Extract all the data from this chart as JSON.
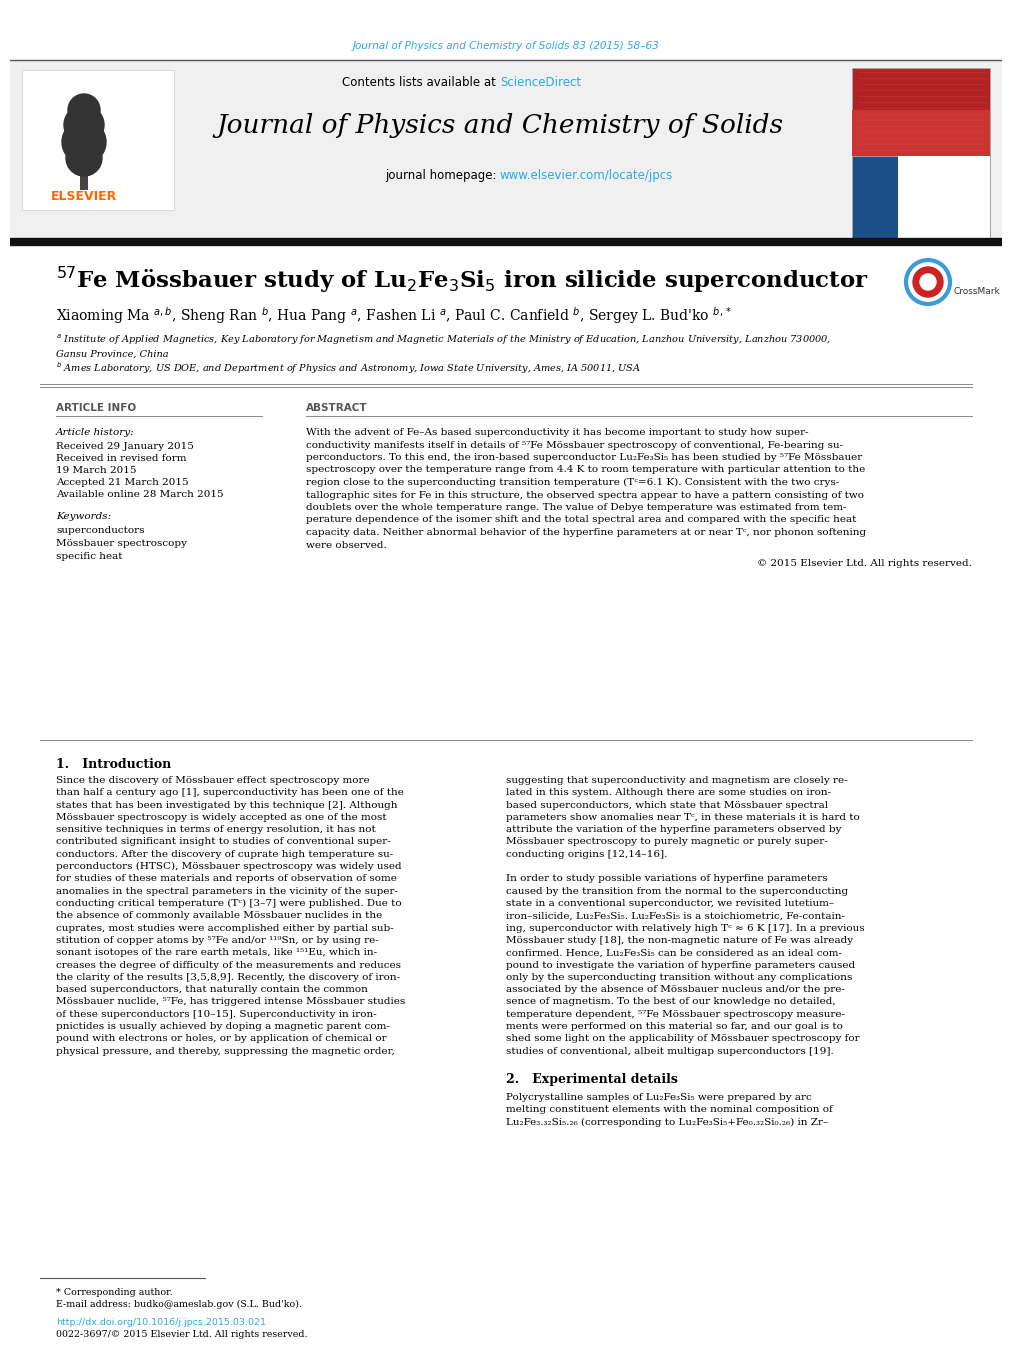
{
  "journal_citation": "Journal of Physics and Chemistry of Solids 83 (2015) 58–63",
  "journal_name": "Journal of Physics and Chemistry of Solids",
  "contents_text": "Contents lists available at ",
  "science_direct": "ScienceDirect",
  "homepage_text": "journal homepage: ",
  "homepage_url": "www.elsevier.com/locate/jpcs",
  "elsevier_color": "#FF6600",
  "link_color": "#29ABE2",
  "title": "$^{57}$Fe Mössbauer study of Lu$_2$Fe$_3$Si$_5$ iron silicide superconductor",
  "authors": "Xiaoming Ma $^{a,b}$, Sheng Ran $^{b}$, Hua Pang $^{a}$, Fashen Li $^{a}$, Paul C. Canfield $^{b}$, Sergey L. Bud'ko $^{b,*}$",
  "affil_a": "$^{a}$ Institute of Applied Magnetics, Key Laboratory for Magnetism and Magnetic Materials of the Ministry of Education, Lanzhou University, Lanzhou 730000,",
  "affil_a2": "Gansu Province, China",
  "affil_b": "$^{b}$ Ames Laboratory, US DOE, and Department of Physics and Astronomy, Iowa State University, Ames, IA 50011, USA",
  "article_info_header": "ARTICLE INFO",
  "abstract_header": "ABSTRACT",
  "article_history_label": "Article history:",
  "received": "Received 29 January 2015",
  "received_revised1": "Received in revised form",
  "received_revised2": "19 March 2015",
  "accepted": "Accepted 21 March 2015",
  "available": "Available online 28 March 2015",
  "keywords_label": "Keywords:",
  "keywords": [
    "superconductors",
    "Mössbauer spectroscopy",
    "specific heat"
  ],
  "copyright": "© 2015 Elsevier Ltd. All rights reserved.",
  "intro_header": "1.   Introduction",
  "exp_header": "2.   Experimental details",
  "footnote_star": "* Corresponding author.",
  "footnote_email": "E-mail address: budko@ameslab.gov (S.L. Bud'ko).",
  "footnote_doi": "http://dx.doi.org/10.1016/j.jpcs.2015.03.021",
  "footnote_issn": "0022-3697/© 2015 Elsevier Ltd. All rights reserved.",
  "abstract_lines": [
    "With the advent of Fe–As based superconductivity it has become important to study how super-",
    "conductivity manifests itself in details of ⁵⁷Fe Mössbauer spectroscopy of conventional, Fe-bearing su-",
    "perconductors. To this end, the iron-based superconductor Lu₂Fe₃Si₅ has been studied by ⁵⁷Fe Mössbauer",
    "spectroscopy over the temperature range from 4.4 K to room temperature with particular attention to the",
    "region close to the superconducting transition temperature (Tᶜ=6.1 K). Consistent with the two crys-",
    "tallographic sites for Fe in this structure, the observed spectra appear to have a pattern consisting of two",
    "doublets over the whole temperature range. The value of Debye temperature was estimated from tem-",
    "perature dependence of the isomer shift and the total spectral area and compared with the specific heat",
    "capacity data. Neither abnormal behavior of the hyperfine parameters at or near Tᶜ, nor phonon softening",
    "were observed."
  ],
  "intro_left_lines": [
    "Since the discovery of Mössbauer effect spectroscopy more",
    "than half a century ago [1], superconductivity has been one of the",
    "states that has been investigated by this technique [2]. Although",
    "Mössbauer spectroscopy is widely accepted as one of the most",
    "sensitive techniques in terms of energy resolution, it has not",
    "contributed significant insight to studies of conventional super-",
    "conductors. After the discovery of cuprate high temperature su-",
    "perconductors (HTSC), Mössbauer spectroscopy was widely used",
    "for studies of these materials and reports of observation of some",
    "anomalies in the spectral parameters in the vicinity of the super-",
    "conducting critical temperature (Tᶜ) [3–7] were published. Due to",
    "the absence of commonly available Mössbauer nuclides in the",
    "cuprates, most studies were accomplished either by partial sub-",
    "stitution of copper atoms by ⁵⁷Fe and/or ¹¹⁹Sn, or by using re-",
    "sonant isotopes of the rare earth metals, like ¹⁵¹Eu, which in-",
    "creases the degree of difficulty of the measurements and reduces",
    "the clarity of the results [3,5,8,9]. Recently, the discovery of iron-",
    "based superconductors, that naturally contain the common",
    "Mössbauer nuclide, ⁵⁷Fe, has triggered intense Mössbauer studies",
    "of these superconductors [10–15]. Superconductivity in iron-",
    "pnictides is usually achieved by doping a magnetic parent com-",
    "pound with electrons or holes, or by application of chemical or",
    "physical pressure, and thereby, suppressing the magnetic order,"
  ],
  "intro_right_lines": [
    "suggesting that superconductivity and magnetism are closely re-",
    "lated in this system. Although there are some studies on iron-",
    "based superconductors, which state that Mössbauer spectral",
    "parameters show anomalies near Tᶜ, in these materials it is hard to",
    "attribute the variation of the hyperfine parameters observed by",
    "Mössbauer spectroscopy to purely magnetic or purely super-",
    "conducting origins [12,14–16].",
    "",
    "In order to study possible variations of hyperfine parameters",
    "caused by the transition from the normal to the superconducting",
    "state in a conventional superconductor, we revisited lutetium–",
    "iron–silicide, Lu₂Fe₃Si₅. Lu₂Fe₃Si₅ is a stoichiometric, Fe-contain-",
    "ing, superconductor with relatively high Tᶜ ≈ 6 K [17]. In a previous",
    "Mössbauer study [18], the non-magnetic nature of Fe was already",
    "confirmed. Hence, Lu₂Fe₃Si₅ can be considered as an ideal com-",
    "pound to investigate the variation of hyperfine parameters caused",
    "only by the superconducting transition without any complications",
    "associated by the absence of Mössbauer nucleus and/or the pre-",
    "sence of magnetism. To the best of our knowledge no detailed,",
    "temperature dependent, ⁵⁷Fe Mössbauer spectroscopy measure-",
    "ments were performed on this material so far, and our goal is to",
    "shed some light on the applicability of Mössbauer spectroscopy for",
    "studies of conventional, albeit multigap superconductors [19]."
  ],
  "exp_right_lines": [
    "Polycrystalline samples of Lu₂Fe₃Si₅ were prepared by arc",
    "melting constituent elements with the nominal composition of",
    "Lu₂Fe₃.₃₂Si₅.₂₆ (corresponding to Lu₂Fe₃Si₅+Fe₀.₃₂Si₀.₂₆) in Zr–"
  ]
}
